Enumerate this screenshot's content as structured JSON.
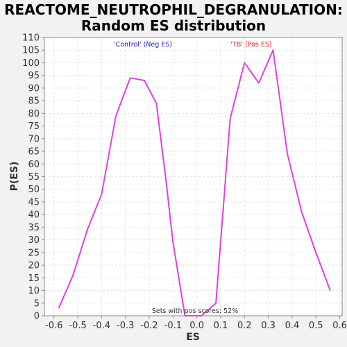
{
  "chart_data": {
    "type": "line",
    "title_line1": "REACTOME_NEUTROPHIL_DEGRANULATION:",
    "title_line2": "Random ES distribution",
    "xlabel": "ES",
    "ylabel": "P(ES)",
    "xlim": [
      -0.64,
      0.61
    ],
    "ylim": [
      0,
      110
    ],
    "xticks": [
      -0.6,
      -0.5,
      -0.4,
      -0.3,
      -0.2,
      -0.1,
      0.0,
      0.1,
      0.2,
      0.3,
      0.4,
      0.5,
      0.6
    ],
    "xtick_labels": [
      "-0.6",
      "-0.5",
      "-0.4",
      "-0.3",
      "-0.2",
      "-0.1",
      "0.0",
      "0.1",
      "0.2",
      "0.3",
      "0.4",
      "0.5",
      "0.6"
    ],
    "yticks": [
      0,
      5,
      10,
      15,
      20,
      25,
      30,
      35,
      40,
      45,
      50,
      55,
      60,
      65,
      70,
      75,
      80,
      85,
      90,
      95,
      100,
      105,
      110
    ],
    "grid": true,
    "annotations": {
      "neg_label": "'Control' (Neg ES)",
      "pos_label": "'TB' (Pos ES)",
      "footer": "Sets with pos scores: 52%",
      "neg_color": "#2020c0",
      "pos_color": "#e02020"
    },
    "line_color": "#e040e0",
    "series": [
      {
        "x": [
          -0.58,
          -0.52,
          -0.46,
          -0.4,
          -0.34,
          -0.28,
          -0.22,
          -0.17,
          -0.13,
          -0.1,
          -0.05,
          0.02,
          0.08,
          0.14,
          0.2,
          0.26,
          0.32,
          0.38,
          0.44,
          0.5,
          0.56
        ],
        "y": [
          3,
          16,
          34,
          48,
          79,
          94,
          93,
          84,
          54,
          29,
          0,
          0,
          5,
          78,
          100,
          92,
          105,
          64,
          41,
          25,
          10
        ]
      }
    ]
  }
}
